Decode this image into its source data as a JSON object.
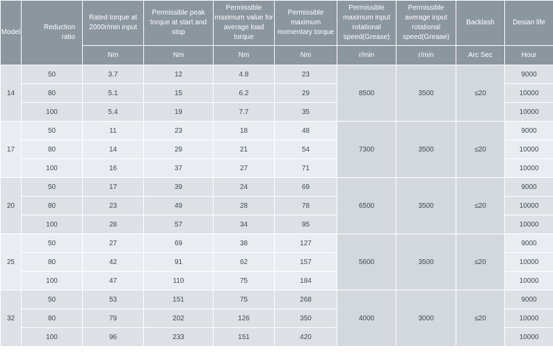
{
  "headers": {
    "model": "Model",
    "ratio": "Reduction\nratio",
    "rated_torque": "Rated torque at 2000r/min input",
    "peak_torque": "Permissible peak torque at start and stop",
    "avg_load_torque": "Permissible maximum value for average load torque",
    "momentary_torque": "Permissible maximum momentary torque",
    "max_input_speed": "Permissible maximum input rotational speed(Grease)",
    "avg_input_speed": "Permissible average input rotational speed(Greaae)",
    "backlash": "Backlash",
    "design_life": "Desian life"
  },
  "units": {
    "rated_torque": "Nm",
    "peak_torque": "Nm",
    "avg_load_torque": "Nm",
    "momentary_torque": "Nm",
    "max_input_speed": "r/min",
    "avg_input_speed": "r/min",
    "backlash": "Arc Sec",
    "design_life": "Hour"
  },
  "groups": [
    {
      "model": "14",
      "max_input_speed": "8500",
      "avg_input_speed": "3500",
      "backlash": "≤20",
      "rows": [
        {
          "ratio": "50",
          "rated": "3.7",
          "peak": "12",
          "avg": "4.8",
          "mom": "23",
          "life": "9000"
        },
        {
          "ratio": "80",
          "rated": "5.1",
          "peak": "15",
          "avg": "6.2",
          "mom": "29",
          "life": "10000"
        },
        {
          "ratio": "100",
          "rated": "5.4",
          "peak": "19",
          "avg": "7.7",
          "mom": "35",
          "life": "10000"
        }
      ]
    },
    {
      "model": "17",
      "max_input_speed": "7300",
      "avg_input_speed": "3500",
      "backlash": "≤20",
      "rows": [
        {
          "ratio": "50",
          "rated": "11",
          "peak": "23",
          "avg": "18",
          "mom": "48",
          "life": "9000"
        },
        {
          "ratio": "80",
          "rated": "14",
          "peak": "29",
          "avg": "21",
          "mom": "54",
          "life": "10000"
        },
        {
          "ratio": "100",
          "rated": "16",
          "peak": "37",
          "avg": "27",
          "mom": "71",
          "life": "10000"
        }
      ]
    },
    {
      "model": "20",
      "max_input_speed": "6500",
      "avg_input_speed": "3500",
      "backlash": "≤20",
      "rows": [
        {
          "ratio": "50",
          "rated": "17",
          "peak": "39",
          "avg": "24",
          "mom": "69",
          "life": "9000"
        },
        {
          "ratio": "80",
          "rated": "23",
          "peak": "49",
          "avg": "28",
          "mom": "78",
          "life": "10000"
        },
        {
          "ratio": "100",
          "rated": "28",
          "peak": "57",
          "avg": "34",
          "mom": "95",
          "life": "10000"
        }
      ]
    },
    {
      "model": "25",
      "max_input_speed": "5600",
      "avg_input_speed": "3500",
      "backlash": "≤20",
      "rows": [
        {
          "ratio": "50",
          "rated": "27",
          "peak": "69",
          "avg": "38",
          "mom": "127",
          "life": "9000"
        },
        {
          "ratio": "80",
          "rated": "42",
          "peak": "91",
          "avg": "62",
          "mom": "157",
          "life": "10000"
        },
        {
          "ratio": "100",
          "rated": "47",
          "peak": "110",
          "avg": "75",
          "mom": "184",
          "life": "10000"
        }
      ]
    },
    {
      "model": "32",
      "max_input_speed": "4000",
      "avg_input_speed": "3000",
      "backlash": "≤20",
      "rows": [
        {
          "ratio": "50",
          "rated": "53",
          "peak": "151",
          "avg": "75",
          "mom": "268",
          "life": "9000"
        },
        {
          "ratio": "80",
          "rated": "79",
          "peak": "202",
          "avg": "126",
          "mom": "350",
          "life": "10000"
        },
        {
          "ratio": "100",
          "rated": "96",
          "peak": "233",
          "avg": "151",
          "mom": "420",
          "life": "10000"
        }
      ]
    }
  ]
}
